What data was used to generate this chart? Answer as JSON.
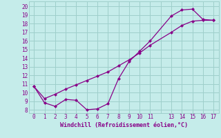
{
  "detail_x": [
    0,
    1,
    2,
    3,
    4,
    5,
    6,
    7,
    8,
    9,
    10,
    11,
    13,
    14,
    15,
    16,
    17
  ],
  "detail_y": [
    10.7,
    8.8,
    8.4,
    9.2,
    9.1,
    8.0,
    8.1,
    8.7,
    11.6,
    13.6,
    14.8,
    16.0,
    18.9,
    19.6,
    19.7,
    18.5,
    18.4
  ],
  "smooth_x": [
    0,
    1,
    2,
    3,
    4,
    5,
    6,
    7,
    8,
    9,
    10,
    11,
    13,
    14,
    15,
    16,
    17
  ],
  "smooth_y": [
    10.7,
    9.3,
    9.8,
    10.4,
    10.9,
    11.4,
    11.9,
    12.4,
    13.1,
    13.8,
    14.6,
    15.5,
    17.0,
    17.8,
    18.3,
    18.4,
    18.4
  ],
  "line_color": "#880088",
  "bg_color": "#c5ecea",
  "grid_color": "#9ecfcb",
  "xlabel": "Windchill (Refroidissement éolien,°C)",
  "xlabel_color": "#880088",
  "xlabel_fontsize": 6.0,
  "xtick_labels": [
    "0",
    "1",
    "2",
    "3",
    "4",
    "5",
    "6",
    "7",
    "8",
    "9",
    "10",
    "11",
    "",
    "13",
    "14",
    "15",
    "16",
    "17"
  ],
  "ytick_labels": [
    "8",
    "9",
    "10",
    "11",
    "12",
    "13",
    "14",
    "15",
    "16",
    "17",
    "18",
    "19",
    "20"
  ],
  "ylim": [
    7.6,
    20.6
  ],
  "xlim": [
    -0.5,
    17.5
  ]
}
